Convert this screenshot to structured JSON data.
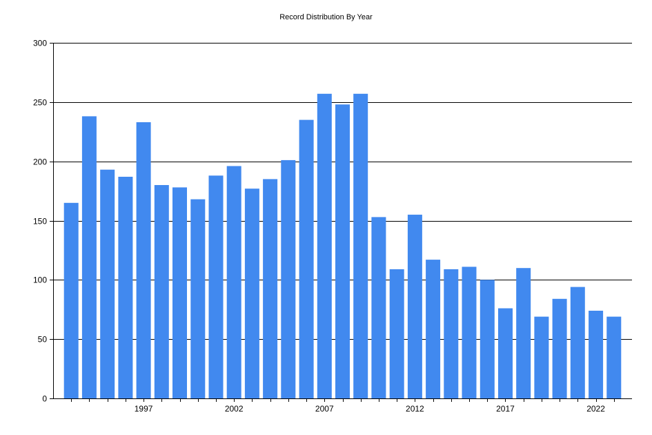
{
  "chart_data": {
    "type": "bar",
    "title": "Record Distribution By Year",
    "xlabel": "",
    "ylabel": "",
    "categories": [
      1993,
      1994,
      1995,
      1996,
      1997,
      1998,
      1999,
      2000,
      2001,
      2002,
      2003,
      2004,
      2005,
      2006,
      2007,
      2008,
      2009,
      2010,
      2011,
      2012,
      2013,
      2014,
      2015,
      2016,
      2017,
      2018,
      2019,
      2020,
      2021,
      2022,
      2023
    ],
    "values": [
      165,
      238,
      193,
      187,
      233,
      180,
      178,
      168,
      188,
      196,
      177,
      185,
      201,
      235,
      257,
      248,
      257,
      153,
      109,
      155,
      117,
      109,
      111,
      100,
      76,
      110,
      69,
      84,
      94,
      74,
      69
    ],
    "ylim": [
      0,
      300
    ],
    "yticks": [
      0,
      50,
      100,
      150,
      200,
      250,
      300
    ],
    "xticks": [
      1997,
      2002,
      2007,
      2012,
      2017,
      2022
    ],
    "bar_color": "#4189EF",
    "grid": true,
    "legend": "none"
  }
}
